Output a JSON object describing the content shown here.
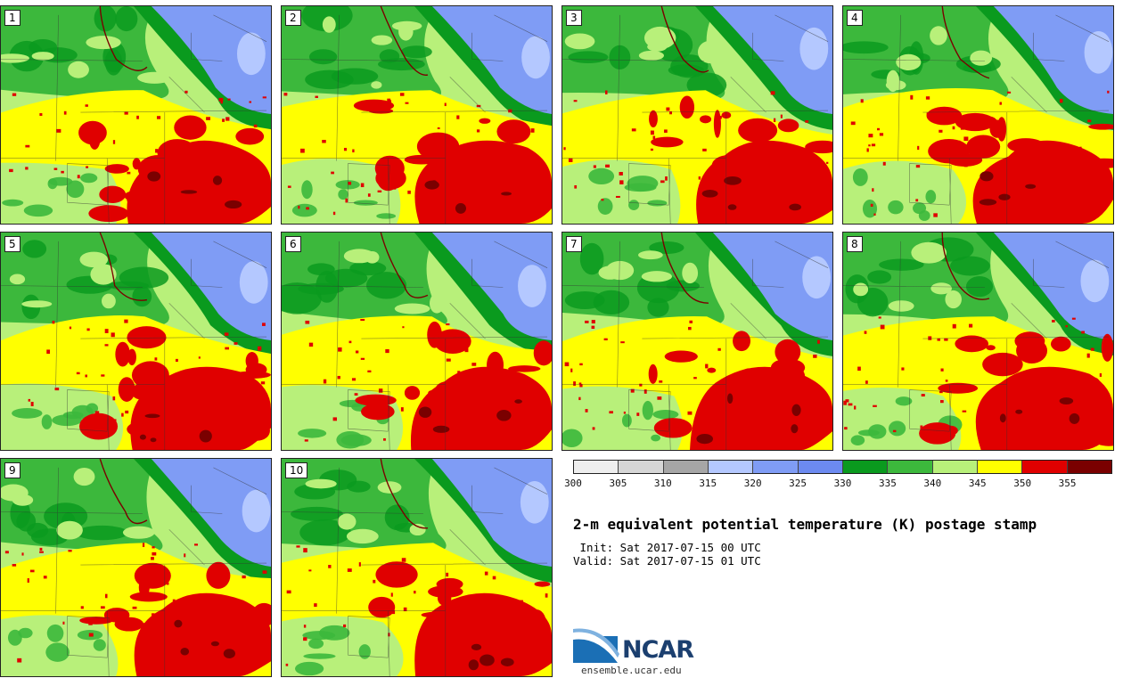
{
  "panels": [
    {
      "label": "1"
    },
    {
      "label": "2"
    },
    {
      "label": "3"
    },
    {
      "label": "4"
    },
    {
      "label": "5"
    },
    {
      "label": "6"
    },
    {
      "label": "7"
    },
    {
      "label": "8"
    },
    {
      "label": "9"
    },
    {
      "label": "10"
    }
  ],
  "colorbar": {
    "ticks": [
      "300",
      "305",
      "310",
      "315",
      "320",
      "325",
      "330",
      "335",
      "340",
      "345",
      "350",
      "355"
    ],
    "colors": [
      "#eeeeee",
      "#d6d6d6",
      "#a6a6a6",
      "#b4c8ff",
      "#7f9cf5",
      "#6c8af0",
      "#0a9a1e",
      "#3cb83c",
      "#b8f07a",
      "#ffff00",
      "#e00000",
      "#7a0000"
    ]
  },
  "title": "2-m equivalent potential temperature (K) postage stamp",
  "init": " Init: Sat 2017-07-15 00 UTC",
  "valid": "Valid: Sat 2017-07-15 01 UTC",
  "logo": {
    "name": "NCAR",
    "url": "ensemble.ucar.edu"
  }
}
